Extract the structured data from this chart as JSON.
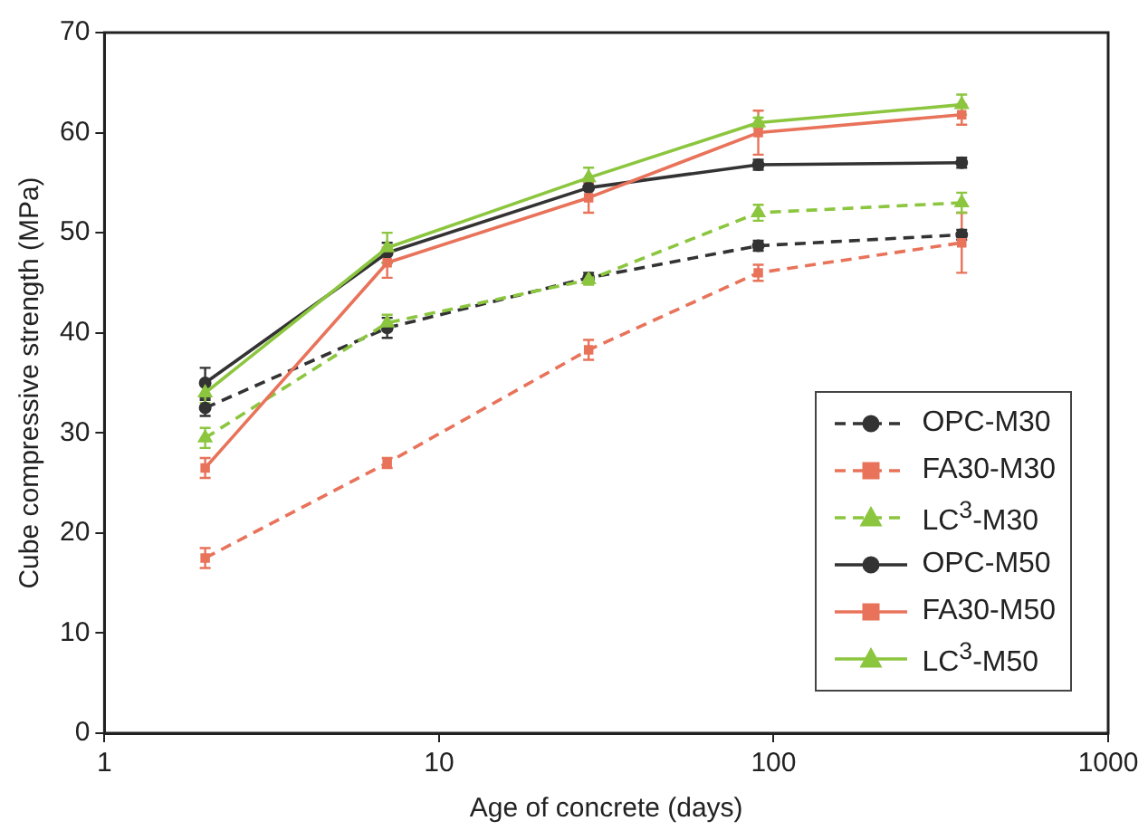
{
  "chart_data": {
    "type": "line",
    "xlabel": "Age of concrete (days)",
    "ylabel": "Cube compressive strength (MPa)",
    "log": "x",
    "xlim": [
      1,
      1000
    ],
    "xticks": [
      1,
      10,
      100,
      1000
    ],
    "ylim": [
      0,
      70
    ],
    "yticks": [
      0,
      10,
      20,
      30,
      40,
      50,
      60,
      70
    ],
    "grid": false,
    "legend": "bottom right",
    "x": [
      2,
      7,
      28,
      90,
      365
    ],
    "series": [
      {
        "name": "OPC-M30",
        "color": "#333333",
        "marker": "circle",
        "line_style": "dashed",
        "values": [
          32.5,
          40.5,
          45.5,
          48.7,
          49.8
        ],
        "errors": [
          0.8,
          1,
          0.5,
          0.5,
          0.5
        ]
      },
      {
        "name": "FA30-M30",
        "color": "#e8735a",
        "marker": "square",
        "line_style": "dashed",
        "values": [
          17.5,
          27,
          38.3,
          46,
          49
        ],
        "errors": [
          1,
          0.5,
          1,
          0.8,
          3
        ]
      },
      {
        "name": "LC$^{3}$-M30",
        "color": "#8cc63f",
        "marker": "triangle",
        "line_style": "dashed",
        "values": [
          29.5,
          41,
          45.3,
          52,
          53
        ],
        "errors": [
          1,
          0.8,
          0.5,
          0.8,
          1
        ]
      },
      {
        "name": "OPC-M50",
        "color": "#333333",
        "marker": "circle",
        "line_style": "solid",
        "values": [
          35,
          48,
          54.5,
          56.8,
          57
        ],
        "errors": [
          1.5,
          1,
          null,
          0.5,
          0.5
        ]
      },
      {
        "name": "FA30-M50",
        "color": "#e8735a",
        "marker": "square",
        "line_style": "solid",
        "values": [
          26.5,
          47,
          53.5,
          60,
          61.8
        ],
        "errors": [
          1,
          1.5,
          1.5,
          2.2,
          1
        ]
      },
      {
        "name": "LC$^{3}$-M50",
        "color": "#8cc63f",
        "marker": "triangle",
        "line_style": "solid",
        "values": [
          34,
          48.5,
          55.5,
          61,
          62.8
        ],
        "errors": [
          1,
          1.5,
          1,
          0.5,
          1
        ]
      }
    ]
  }
}
